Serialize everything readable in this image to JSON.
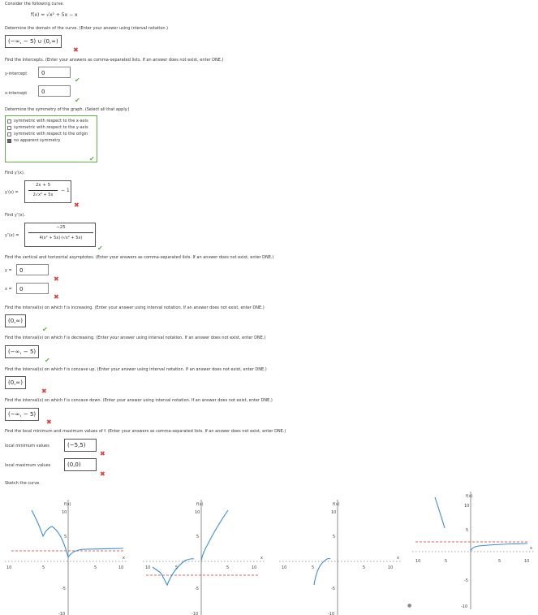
{
  "intro": "Consider the following curve.",
  "function_def": "f(x) = √x² + 5x − x",
  "q_domain": {
    "prompt": "Determine the domain of the curve. (Enter your answer using interval notation.)",
    "answer": "(−∞, − 5) ∪ (0,∞)"
  },
  "q_intercepts": {
    "prompt": "Find the intercepts. (Enter your answers as comma-separated lists. If an answer does not exist, enter DNE.)",
    "y_label": "y-intercept",
    "y_value": "0",
    "x_label": "x-intercept",
    "x_value": "0"
  },
  "q_symmetry": {
    "prompt": "Determine the symmetry of the graph. (Select all that apply.)",
    "options": [
      {
        "label": "symmetric with respect to the x-axis",
        "checked": false
      },
      {
        "label": "symmetric with respect to the y-axis",
        "checked": false
      },
      {
        "label": "symmetric with respect to the origin",
        "checked": false
      },
      {
        "label": "no apparent symmetry",
        "checked": true
      }
    ]
  },
  "q_fprime": {
    "prompt": "Find y′(x).",
    "label": "y′(x) =",
    "num": "2x + 5",
    "den": "2√x² + 5x",
    "tail": "− 1"
  },
  "q_fdoubleprime": {
    "prompt": "Find y″(x).",
    "label": "y″(x) =",
    "num": "−25",
    "den": "4(x² + 5x)·(√x² + 5x)"
  },
  "q_asymptotes": {
    "prompt": "Find the vertical and horizontal asymptotes. (Enter your answers as comma-separated lists. If an answer does not exist, enter DNE.)",
    "y_label": "y =",
    "y_value": "0",
    "x_label": "x =",
    "x_value": "0"
  },
  "q_increasing": {
    "prompt": "Find the interval(s) on which f is increasing. (Enter your answer using interval notation. If an answer does not exist, enter DNE.)",
    "answer": "(0,∞)"
  },
  "q_decreasing": {
    "prompt": "Find the interval(s) on which f is decreasing. (Enter your answer using interval notation. If an answer does not exist, enter DNE.)",
    "answer": "(−∞, − 5)"
  },
  "q_concave_up": {
    "prompt": "Find the interval(s) on which f is concave up. (Enter your answer using interval notation. If an answer does not exist, enter DNE.)",
    "answer": "(0,∞)"
  },
  "q_concave_down": {
    "prompt": "Find the interval(s) on which f is concave down. (Enter your answer using interval notation. If an answer does not exist, enter DNE.)",
    "answer": "(−∞, − 5)"
  },
  "q_extrema": {
    "prompt": "Find the local minimum and maximum values of f. (Enter your answers as comma-separated lists. If an answer does not exist, enter DNE.)",
    "min_label": "local minimum values",
    "min_value": "(−5,5)",
    "max_label": "local maximum values",
    "max_value": "(0,0)"
  },
  "sketch": {
    "prompt": "Sketch the curve.",
    "ylabel": "f(x)",
    "xlabel": "x",
    "ticks": {
      "y_top": "10",
      "y_mid": "5",
      "y_neg_mid": "-5",
      "y_bot": "-10",
      "x_left": "10",
      "x_left_mid": "5",
      "x_right_mid": "5",
      "x_right": "10"
    }
  },
  "colors": {
    "curve": "#3b8fd4",
    "asymptote": "#d93030",
    "correct": "#5fb247",
    "wrong": "#e83a3a"
  }
}
